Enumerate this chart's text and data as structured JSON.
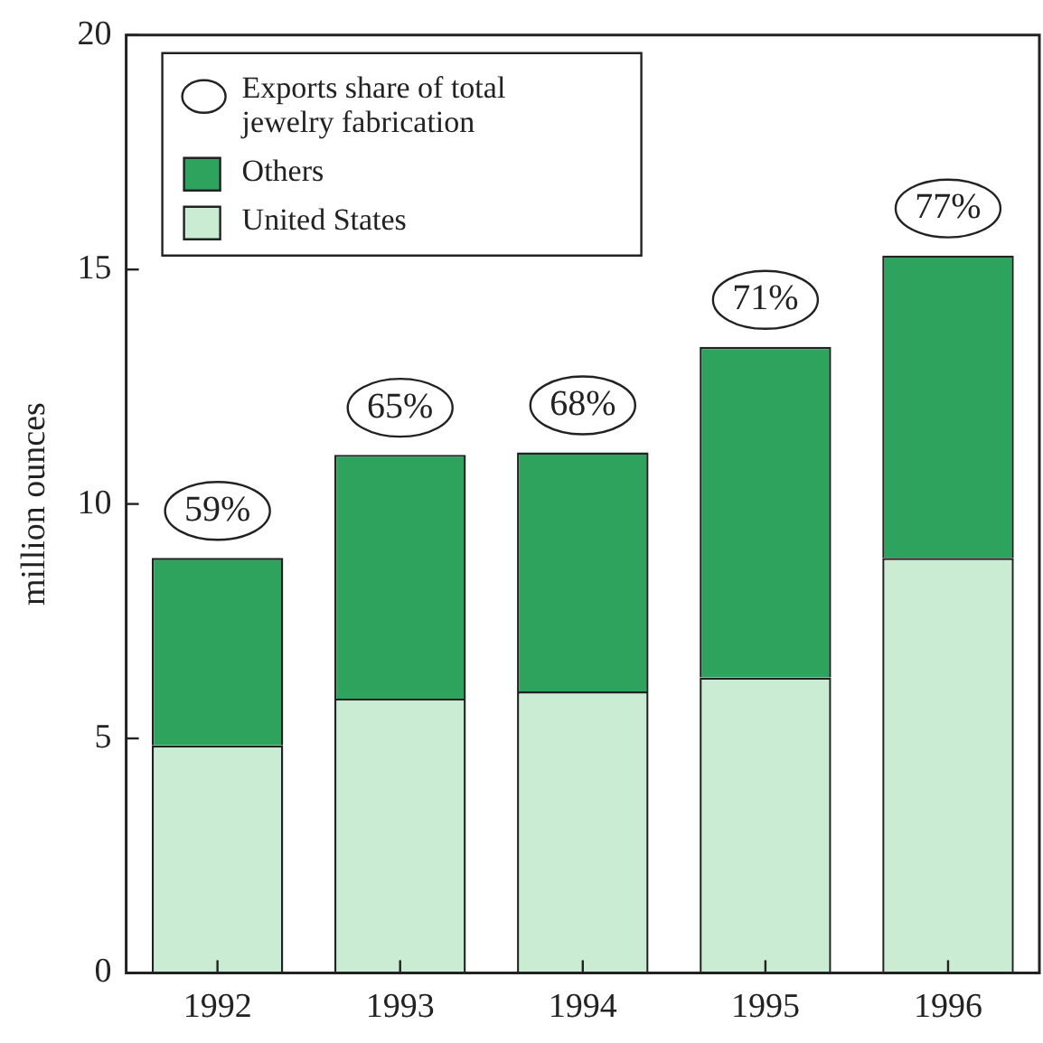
{
  "chart_data": {
    "type": "bar",
    "stacked": true,
    "ylabel": "million ounces",
    "categories": [
      "1992",
      "1993",
      "1994",
      "1995",
      "1996"
    ],
    "series": [
      {
        "name": "United States",
        "color": "#c9ecd3",
        "values": [
          4.85,
          5.85,
          6.0,
          6.3,
          8.85
        ]
      },
      {
        "name": "Others",
        "color": "#2ea35e",
        "values": [
          4.0,
          5.2,
          5.1,
          7.05,
          6.45
        ]
      }
    ],
    "ylim": [
      0,
      20
    ],
    "yticks": [
      0,
      5,
      10,
      15,
      20
    ],
    "grid": false,
    "legend": "top left",
    "annotations": [
      "Exports share of total jewelry fabrication",
      {
        "text": "59%",
        "x": "1992",
        "y": 8.85
      },
      {
        "text": "65%",
        "x": "1993",
        "y": 11.05
      },
      {
        "text": "68%",
        "x": "1994",
        "y": 11.1
      },
      {
        "text": "71%",
        "x": "1995",
        "y": 13.35
      },
      {
        "text": "77%",
        "x": "1996",
        "y": 15.3
      }
    ]
  }
}
